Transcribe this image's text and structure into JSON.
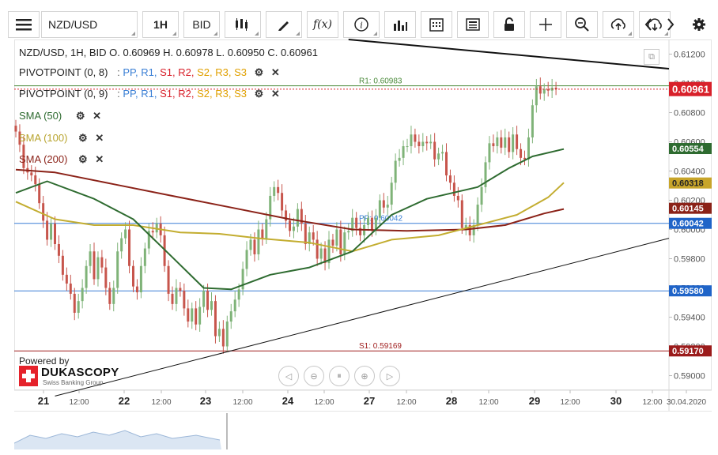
{
  "toolbar": {
    "menu_icon": "hamburger-icon",
    "symbol": "NZD/USD",
    "period": "1H",
    "side": "BID",
    "tools": [
      "candle-type-icon",
      "pencil-icon",
      "fx-icon",
      "info-icon",
      "bars-icon",
      "calendar-icon",
      "news-icon",
      "lock-icon",
      "crosshair-icon",
      "zoom-icon",
      "upload-icon",
      "download-icon",
      "prev-icon",
      "next-icon",
      "gear-icon"
    ],
    "fx_label": "f(x)"
  },
  "header": {
    "ohlc": "NZD/USD, 1H, BID    O. 0.60969 H. 0.60978 L. 0.60950 C. 0.60961"
  },
  "indicators": [
    {
      "name": "PIVOTPOINT (0, 8)",
      "sep": ":",
      "levels": [
        "PP,",
        "R1,",
        "S1,",
        "R2,",
        "S2,",
        "R3,",
        "S3"
      ],
      "level_colors": [
        "#3a7fd5",
        "#3a7fd5",
        "#d8202a",
        "#d8202a",
        "#e0a000",
        "#e0a000",
        "#e0a000"
      ]
    },
    {
      "name": "PIVOTPOINT (0, 9)",
      "sep": ":",
      "levels": [
        "PP,",
        "R1,",
        "S1,",
        "R2,",
        "S2,",
        "R3,",
        "S3"
      ],
      "level_colors": [
        "#3a7fd5",
        "#3a7fd5",
        "#d8202a",
        "#d8202a",
        "#e0a000",
        "#e0a000",
        "#e0a000"
      ]
    },
    {
      "name": "SMA (50)",
      "color": "#2e6b30"
    },
    {
      "name": "SMA (100)",
      "color": "#b8a42e"
    },
    {
      "name": "SMA (200)",
      "color": "#8b2218"
    }
  ],
  "branding": {
    "powered": "Powered by",
    "name": "DUKASCOPY",
    "sub": "Swiss Banking Group"
  },
  "chart_data": {
    "type": "candlestick",
    "ylim": [
      0.589,
      0.613
    ],
    "y_ticks": [
      "0.61200",
      "0.61000",
      "0.60800",
      "0.60600",
      "0.60400",
      "0.60200",
      "0.60000",
      "0.59800",
      "0.59600",
      "0.59400",
      "0.59200",
      "0.59000"
    ],
    "x_labels": [
      "21",
      "12:00",
      "22",
      "12:00",
      "23",
      "12:00",
      "24",
      "12:00",
      "27",
      "12:00",
      "28",
      "12:00",
      "29",
      "12:00",
      "30",
      "12:00",
      "30.04.2020"
    ],
    "candles_close": [
      0.6067,
      0.6058,
      0.6042,
      0.6039,
      0.6037,
      0.6031,
      0.6018,
      0.6006,
      0.5993,
      0.6004,
      0.599,
      0.5982,
      0.5969,
      0.5963,
      0.5956,
      0.5943,
      0.5951,
      0.596,
      0.5975,
      0.5985,
      0.5966,
      0.5981,
      0.5974,
      0.596,
      0.5949,
      0.596,
      0.5985,
      0.5994,
      0.6,
      0.5975,
      0.5961,
      0.5957,
      0.5975,
      0.5987,
      0.5999,
      0.5998,
      0.6004,
      0.5996,
      0.5975,
      0.5956,
      0.5949,
      0.596,
      0.5958,
      0.5946,
      0.5937,
      0.5946,
      0.5935,
      0.5947,
      0.5958,
      0.5945,
      0.5951,
      0.5927,
      0.5932,
      0.592,
      0.5937,
      0.5944,
      0.5952,
      0.5959,
      0.5973,
      0.5986,
      0.5993,
      0.5983,
      0.6,
      0.5994,
      0.6007,
      0.6023,
      0.6029,
      0.6025,
      0.6013,
      0.6006,
      0.5999,
      0.6002,
      0.6014,
      0.6004,
      0.599,
      0.5998,
      0.5993,
      0.598,
      0.5987,
      0.5977,
      0.5993,
      0.5989,
      0.6,
      0.5983,
      0.5998,
      0.5999,
      0.6008,
      0.6001,
      0.5996,
      0.6003,
      0.6008,
      0.6,
      0.6008,
      0.602,
      0.6015,
      0.6017,
      0.6032,
      0.6047,
      0.6049,
      0.6057,
      0.6057,
      0.6065,
      0.606,
      0.6057,
      0.606,
      0.6059,
      0.606,
      0.6048,
      0.6052,
      0.6053,
      0.6037,
      0.6032,
      0.6023,
      0.602,
      0.6001,
      0.6003,
      0.5996,
      0.6003,
      0.6017,
      0.6029,
      0.6046,
      0.6059,
      0.6057,
      0.6063,
      0.6056,
      0.6063,
      0.6053,
      0.6065,
      0.6055,
      0.6049,
      0.6048,
      0.6063,
      0.6085,
      0.6098,
      0.6093,
      0.6096,
      0.6095,
      0.6097,
      0.6096
    ],
    "sma50": [
      [
        0,
        0.6025
      ],
      [
        8,
        0.6033
      ],
      [
        20,
        0.6021
      ],
      [
        30,
        0.6007
      ],
      [
        40,
        0.5981
      ],
      [
        48,
        0.596
      ],
      [
        55,
        0.5959
      ],
      [
        65,
        0.5969
      ],
      [
        75,
        0.5974
      ],
      [
        86,
        0.5985
      ],
      [
        96,
        0.601
      ],
      [
        105,
        0.6021
      ],
      [
        118,
        0.6029
      ],
      [
        126,
        0.6042
      ],
      [
        132,
        0.605
      ],
      [
        140,
        0.6055
      ]
    ],
    "sma100": [
      [
        0,
        0.6019
      ],
      [
        10,
        0.6007
      ],
      [
        20,
        0.6003
      ],
      [
        30,
        0.6003
      ],
      [
        42,
        0.5998
      ],
      [
        52,
        0.5997
      ],
      [
        62,
        0.5994
      ],
      [
        75,
        0.5991
      ],
      [
        86,
        0.5985
      ],
      [
        96,
        0.5993
      ],
      [
        108,
        0.5996
      ],
      [
        118,
        0.6003
      ],
      [
        128,
        0.601
      ],
      [
        136,
        0.6022
      ],
      [
        140,
        0.6032
      ]
    ],
    "sma200": [
      [
        0,
        0.6041
      ],
      [
        10,
        0.6039
      ],
      [
        25,
        0.6031
      ],
      [
        40,
        0.6023
      ],
      [
        55,
        0.6015
      ],
      [
        70,
        0.6007
      ],
      [
        86,
        0.6
      ],
      [
        100,
        0.5999
      ],
      [
        115,
        0.6
      ],
      [
        125,
        0.6003
      ],
      [
        135,
        0.6011
      ],
      [
        140,
        0.6014
      ]
    ],
    "trendlines": [
      {
        "from": [
          85,
          0.613
        ],
        "to": [
          208,
          0.611
        ],
        "color": "#111111",
        "width": 2
      },
      {
        "from": [
          10,
          0.5886
        ],
        "to": [
          208,
          0.5994
        ],
        "color": "#111111",
        "width": 1
      }
    ],
    "hlines": [
      {
        "value": 0.60983,
        "label": "R1: 0.60983",
        "color": "#4a8a3a",
        "badge": "",
        "badge_color": ""
      },
      {
        "value": 0.60042,
        "label": "PP: 0.60042",
        "color": "#3a7fd5",
        "badge": "0.60042",
        "badge_color": "#1f64c8"
      },
      {
        "value": 0.5958,
        "label": "",
        "color": "#3a7fd5",
        "badge": "0.59580",
        "badge_color": "#1f64c8"
      },
      {
        "value": 0.59169,
        "label": "S1: 0.59169",
        "color": "#a02020",
        "badge": "0.59170",
        "badge_color": "#9b1b1b"
      }
    ],
    "price_badges": [
      {
        "value": 0.60961,
        "text": "0.60961",
        "color": "#d8202a",
        "large": true
      },
      {
        "value": 0.60554,
        "text": "0.60554",
        "color": "#2e6b30"
      },
      {
        "value": 0.60318,
        "text": "0.60318",
        "color": "#c8a52a",
        "dark_text": true
      },
      {
        "value": 0.60145,
        "text": "0.60145",
        "color": "#8b2218"
      }
    ]
  }
}
